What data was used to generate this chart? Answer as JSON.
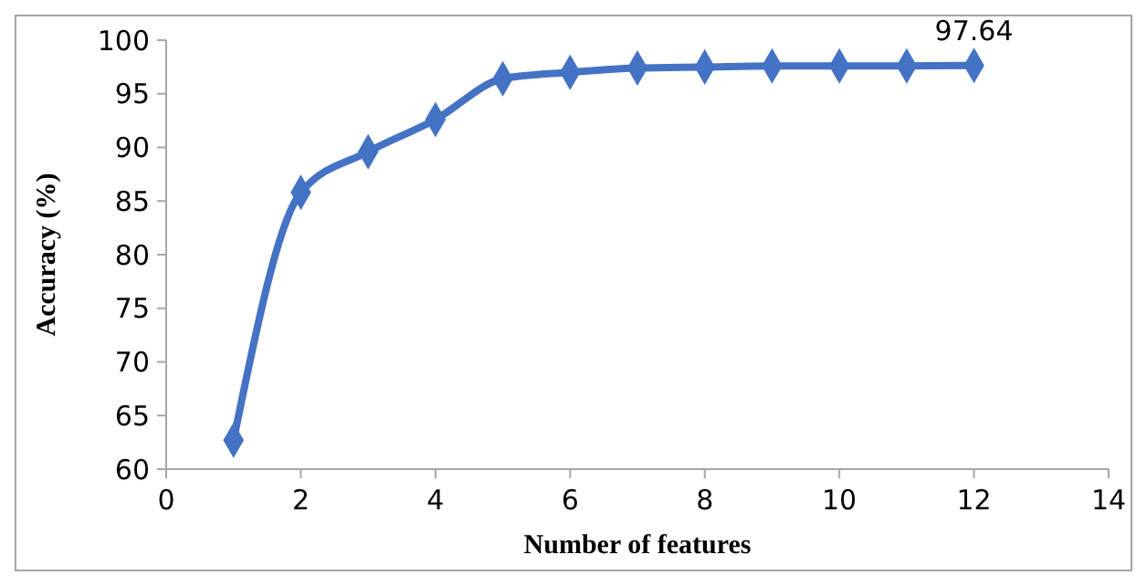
{
  "chart_data": {
    "type": "line",
    "xlabel": "Number of features",
    "ylabel": "Accuracy (%)",
    "x": [
      1,
      2,
      3,
      4,
      5,
      6,
      7,
      8,
      9,
      10,
      11,
      12
    ],
    "series": [
      {
        "color": "#4472c4",
        "values": [
          62.7,
          85.8,
          89.6,
          92.6,
          96.4,
          97.0,
          97.4,
          97.5,
          97.6,
          97.6,
          97.6,
          97.64
        ]
      }
    ],
    "xlim": [
      0,
      14
    ],
    "xticks": [
      0,
      2,
      4,
      6,
      8,
      10,
      12,
      14
    ],
    "ylim": [
      60,
      100
    ],
    "yticks": [
      60,
      65,
      70,
      75,
      80,
      85,
      90,
      95,
      100
    ],
    "marker": "diamond",
    "line_style": "solid",
    "annotations": [
      {
        "text": "97.64",
        "x": 12,
        "y": 97.64
      }
    ]
  }
}
